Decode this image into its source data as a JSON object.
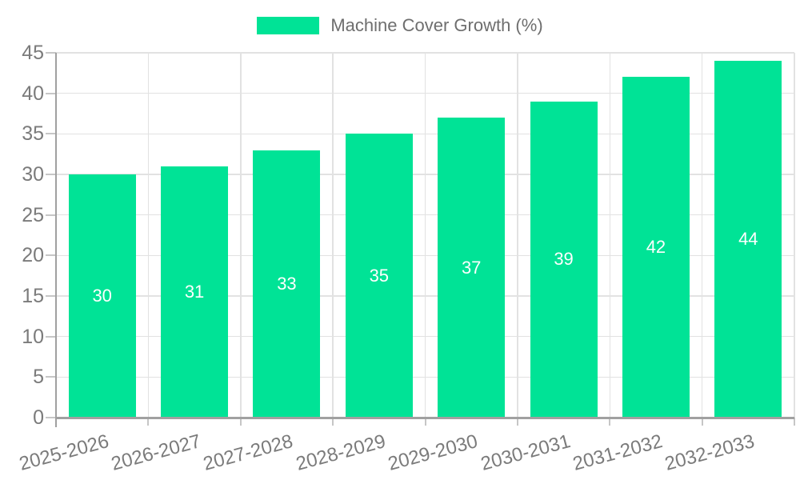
{
  "legend": {
    "label": "Machine Cover Growth (%)"
  },
  "chart_data": {
    "type": "bar",
    "title": "Machine Cover Growth (%)",
    "categories": [
      "2025-2026",
      "2026-2027",
      "2027-2028",
      "2028-2029",
      "2029-2030",
      "2030-2031",
      "2031-2032",
      "2032-2033"
    ],
    "series": [
      {
        "name": "Machine Cover Growth (%)",
        "values": [
          30,
          31,
          33,
          35,
          37,
          39,
          42,
          44
        ]
      }
    ],
    "value_labels": [
      "30",
      "31",
      "33",
      "35",
      "37",
      "39",
      "42",
      "44"
    ],
    "yticks": [
      0,
      5,
      10,
      15,
      20,
      25,
      30,
      35,
      40,
      45
    ],
    "ylim": [
      0,
      45
    ],
    "xlabel": "",
    "ylabel": "",
    "grid": true,
    "legend_position": "top",
    "x_label_rotation": -15,
    "colors": {
      "bar": "#00E396",
      "value_label": "#FFFFFF",
      "axis_label": "#7B7B7B",
      "legend_text": "#6E6E6E",
      "gridline": "#E2E2E2",
      "tick": "#C6C6C6",
      "axis_line": "#A0A0A0",
      "background": "#FFFFFF"
    }
  }
}
